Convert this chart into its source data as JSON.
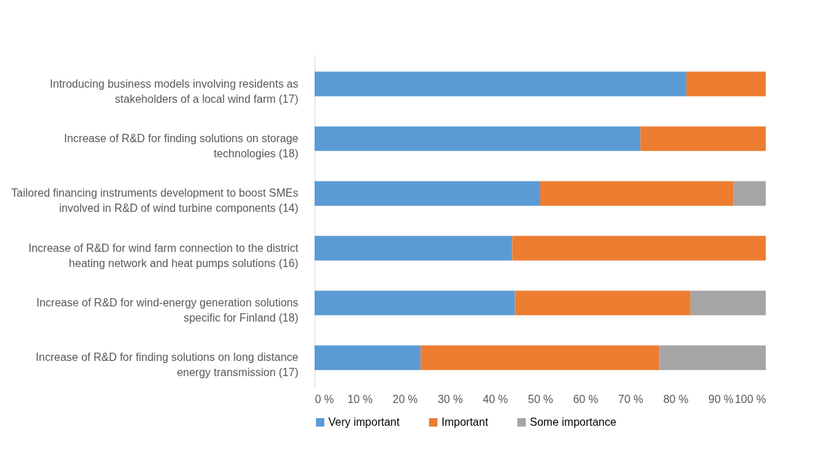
{
  "chart_data": {
    "type": "bar",
    "orientation": "horizontal",
    "stacked": true,
    "categories": [
      "Introducing business models involving residents as stakeholders of a local wind farm (17)",
      "Increase of R&D for finding solutions on storage technologies (18)",
      "Tailored financing instruments development to boost SMEs involved in R&D of wind turbine components (14)",
      "Increase of R&D for wind farm connection to the district heating network and heat pumps solutions (16)",
      "Increase of R&D for wind-energy generation solutions specific for Finland (18)",
      "Increase of R&D for finding solutions on long distance energy transmission (17)"
    ],
    "series": [
      {
        "name": "Very important",
        "color": "#5b9bd5",
        "values": [
          82.4,
          72.2,
          50.0,
          43.8,
          44.4,
          23.5
        ]
      },
      {
        "name": "Important",
        "color": "#ed7d31",
        "values": [
          17.6,
          27.8,
          42.9,
          56.2,
          38.9,
          52.9
        ]
      },
      {
        "name": "Some importance",
        "color": "#a5a5a5",
        "values": [
          0,
          0,
          7.1,
          0,
          16.7,
          23.6
        ]
      }
    ],
    "xlim": [
      0,
      100
    ],
    "xticks": [
      {
        "value": 0,
        "label": "0 %"
      },
      {
        "value": 10,
        "label": "10 %"
      },
      {
        "value": 20,
        "label": "20 %"
      },
      {
        "value": 30,
        "label": "30 %"
      },
      {
        "value": 40,
        "label": "40 %"
      },
      {
        "value": 50,
        "label": "50 %"
      },
      {
        "value": 60,
        "label": "60 %"
      },
      {
        "value": 70,
        "label": "70 %"
      },
      {
        "value": 80,
        "label": "80 %"
      },
      {
        "value": 90,
        "label": "90 %"
      },
      {
        "value": 100,
        "label": "100 %"
      }
    ],
    "grid": false,
    "legend": "bottom"
  }
}
